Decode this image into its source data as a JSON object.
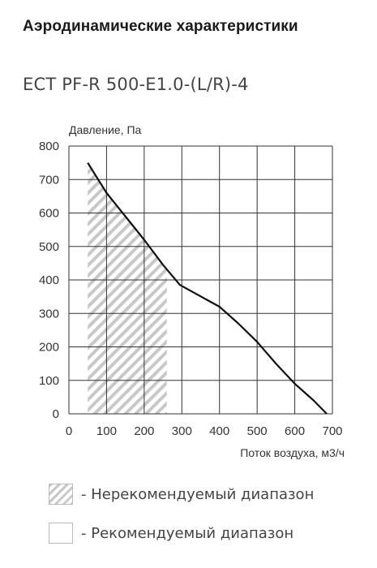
{
  "header": {
    "title": "Аэродинамические характеристики",
    "model": "ECT PF-R 500-E1.0-(L/R)-4"
  },
  "chart_data": {
    "type": "line",
    "ylabel": "Давление, Па",
    "xlabel": "Поток воздуха, м3/ч",
    "xlim": [
      0,
      700
    ],
    "ylim": [
      0,
      800
    ],
    "x_ticks": [
      0,
      100,
      200,
      300,
      400,
      500,
      600,
      700
    ],
    "y_ticks": [
      0,
      100,
      200,
      300,
      400,
      500,
      600,
      700,
      800
    ],
    "grid": true,
    "series": [
      {
        "x": [
          50,
          100,
          150,
          200,
          250,
          295,
          400,
          450,
          500,
          550,
          600,
          650,
          685
        ],
        "y": [
          750,
          660,
          590,
          520,
          445,
          385,
          320,
          270,
          215,
          150,
          90,
          40,
          0
        ]
      }
    ],
    "non_recommended_range": {
      "x": [
        50,
        260
      ],
      "y": [
        0,
        750
      ]
    },
    "colors": {
      "line": "#111111",
      "grid": "#333333",
      "hatch": "#c8c8c8"
    }
  },
  "legend": {
    "items": [
      {
        "label": "- Нерекомендуемый диапазон",
        "style": "hatched"
      },
      {
        "label": "- Рекомендуемый диапазон",
        "style": "plain"
      }
    ]
  }
}
